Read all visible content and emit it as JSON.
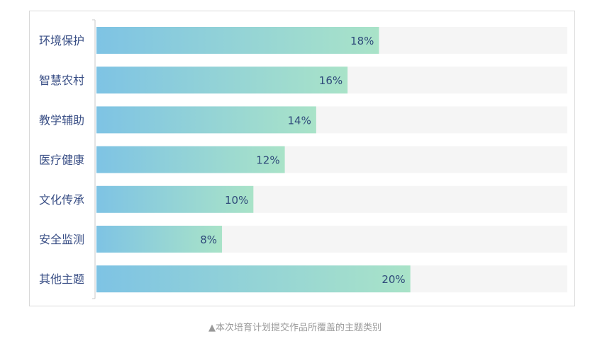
{
  "chart_data": {
    "type": "bar",
    "orientation": "horizontal",
    "categories": [
      "环境保护",
      "智慧农村",
      "教学辅助",
      "医疗健康",
      "文化传承",
      "安全监测",
      "其他主题"
    ],
    "values": [
      18,
      16,
      14,
      12,
      10,
      8,
      20
    ],
    "data_labels": [
      "18%",
      "16%",
      "14%",
      "12%",
      "10%",
      "8%",
      "20%"
    ],
    "xlim": [
      0,
      30
    ],
    "grid": false,
    "legend": "none",
    "colors": {
      "bar_gradient_start": "#7ec3e4",
      "bar_gradient_end": "#a9e3c8",
      "track": "#f5f5f5",
      "category_label": "#3a4f86",
      "value_label": "#2f4a7a",
      "axis": "#c8c8c8"
    }
  },
  "caption": "▲本次培育计划提交作品所覆盖的主题类别"
}
